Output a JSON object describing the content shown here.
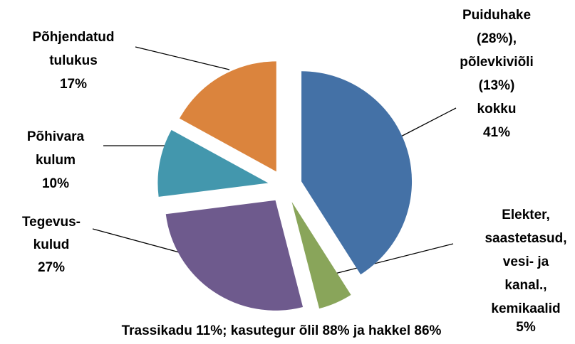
{
  "chart_data": {
    "type": "pie",
    "categories": [
      [
        "Puiduhake",
        "(28%),",
        "põlevkiviõli",
        "(13%)",
        "kokku"
      ],
      [
        "Elekter,",
        "saastetasud,",
        "vesi- ja",
        "kanal.,",
        "kemikaalid"
      ],
      [
        "Tegevus-",
        "kulud"
      ],
      [
        "Põhivara",
        "kulum"
      ],
      [
        "Põhjendatud",
        "tulukus"
      ]
    ],
    "values": [
      41,
      5,
      27,
      10,
      17
    ],
    "value_labels": [
      "41%",
      "5%",
      "27%",
      "10%",
      "17%"
    ],
    "colors": [
      "#4471a6",
      "#89a55a",
      "#6e5a8d",
      "#4397ad",
      "#db843d"
    ],
    "annotation": "Trassikadu 11%; kasutegur õlil 88% ja hakkel 86%"
  }
}
